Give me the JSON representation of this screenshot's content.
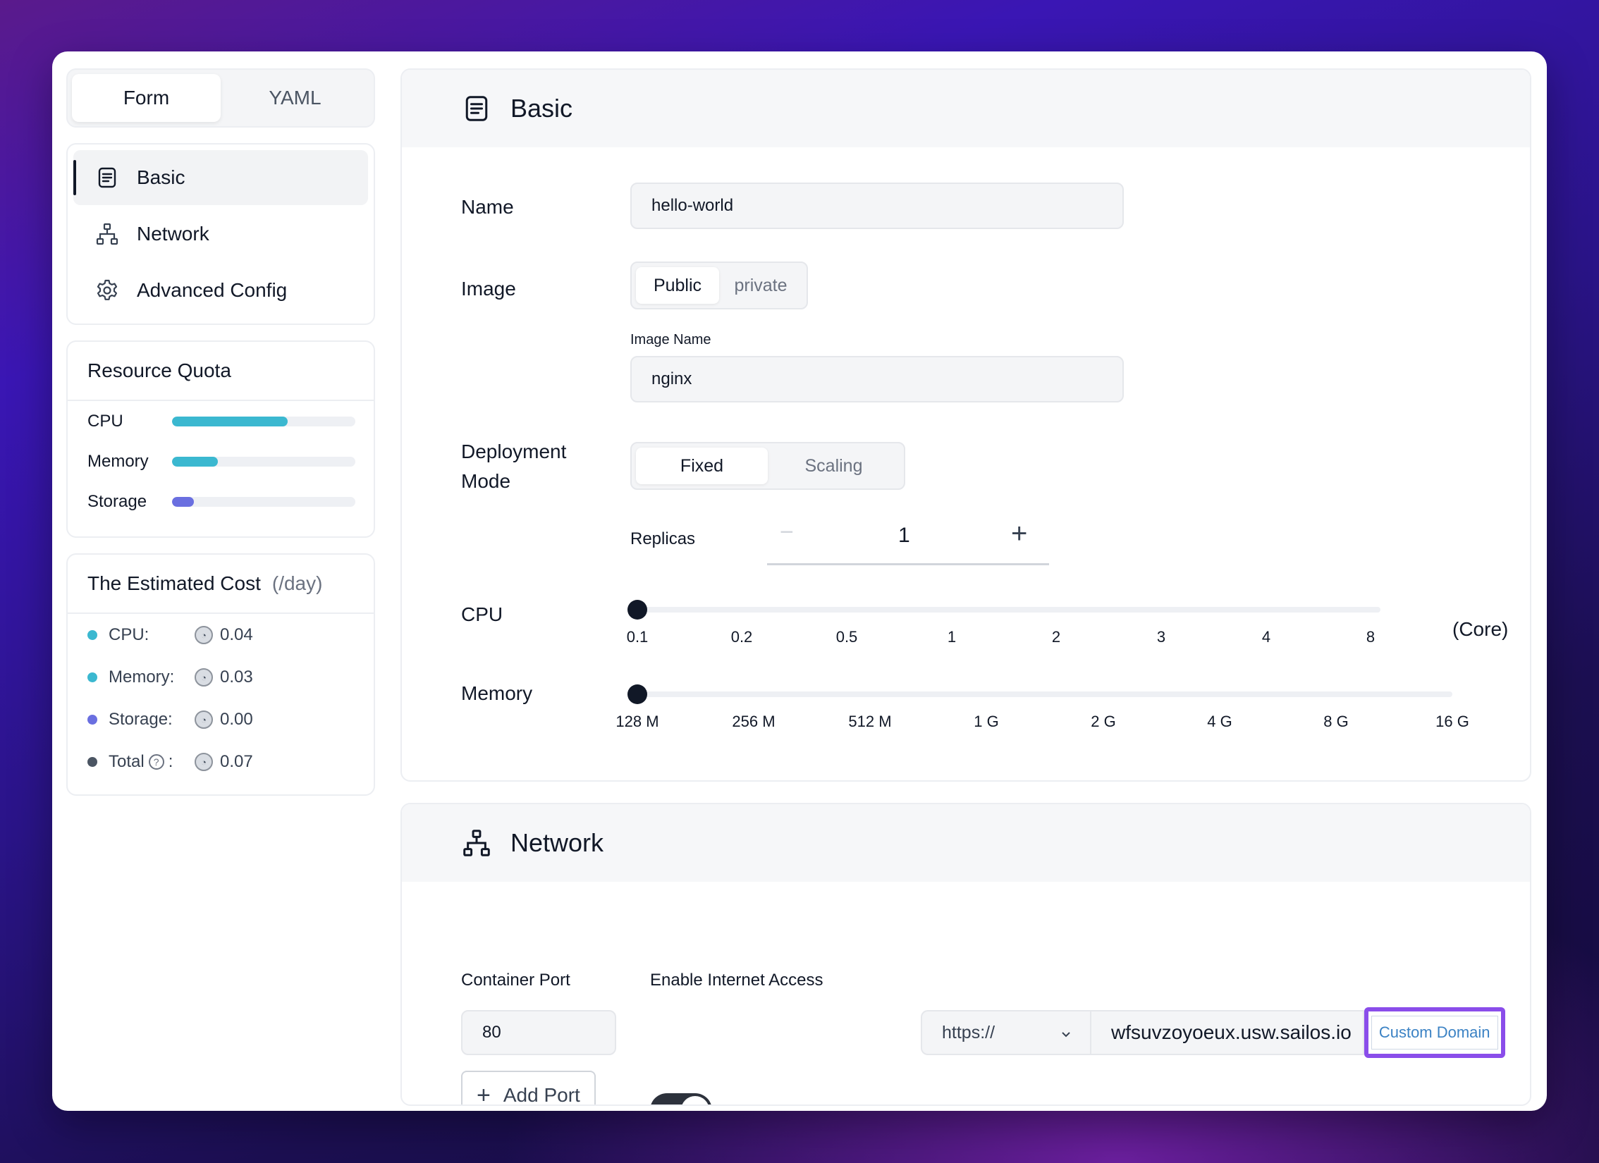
{
  "mode_tabs": [
    {
      "label": "Form",
      "active": true
    },
    {
      "label": "YAML",
      "active": false
    }
  ],
  "nav": {
    "items": [
      {
        "label": "Basic",
        "icon": "document-icon",
        "active": true
      },
      {
        "label": "Network",
        "icon": "network-icon",
        "active": false
      },
      {
        "label": "Advanced Config",
        "icon": "gear-icon",
        "active": false
      }
    ]
  },
  "resource_quota": {
    "title": "Resource Quota",
    "items": [
      {
        "label": "CPU",
        "fraction": 0.63,
        "color": "#3bb8d0"
      },
      {
        "label": "Memory",
        "fraction": 0.25,
        "color": "#3bb8d0"
      },
      {
        "label": "Storage",
        "fraction": 0.12,
        "color": "#6a6fe0"
      }
    ]
  },
  "cost": {
    "title": "The Estimated Cost",
    "unit": "(/day)",
    "items": [
      {
        "label": "CPU:",
        "value": "0.04",
        "color": "#3bb8d0"
      },
      {
        "label": "Memory:",
        "value": "0.03",
        "color": "#3bb8d0"
      },
      {
        "label": "Storage:",
        "value": "0.00",
        "color": "#6a6fe0"
      },
      {
        "label": "Total",
        "value": "0.07",
        "color": "#4b5563",
        "colon": ":"
      }
    ]
  },
  "basic": {
    "title": "Basic",
    "name_label": "Name",
    "name_value": "hello-world",
    "image_label": "Image",
    "image_options": [
      "Public",
      "private"
    ],
    "image_name_label": "Image Name",
    "image_name_value": "nginx",
    "deployment_label_line1": "Deployment",
    "deployment_label_line2": "Mode",
    "deployment_options": [
      "Fixed",
      "Scaling"
    ],
    "replicas_label": "Replicas",
    "replicas_value": "1",
    "replicas_minus": "−",
    "replicas_plus": "+",
    "cpu_label": "CPU",
    "cpu_ticks": [
      "0.1",
      "0.2",
      "0.5",
      "1",
      "2",
      "3",
      "4",
      "8"
    ],
    "cpu_unit": "(Core)",
    "cpu_selected": "0.1",
    "memory_label": "Memory",
    "memory_ticks": [
      "128 M",
      "256 M",
      "512 M",
      "1 G",
      "2 G",
      "4 G",
      "8 G",
      "16 G"
    ],
    "memory_selected": "128 M"
  },
  "network": {
    "title": "Network",
    "port_label": "Container Port",
    "port_value": "80",
    "internet_label": "Enable Internet Access",
    "internet_enabled": true,
    "add_port_label": "Add Port",
    "protocol": "https://",
    "domain": "wfsuvzoyoeux.usw.sailos.io",
    "custom_domain_label": "Custom Domain"
  }
}
